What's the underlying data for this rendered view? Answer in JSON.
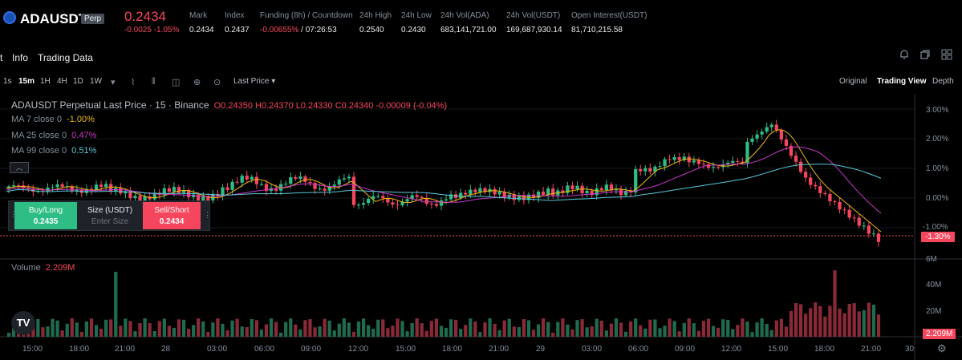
{
  "header": {
    "symbol": "ADAUSDT",
    "badge": "Perp",
    "last_price": "0.2434",
    "change": "-0.0025 -1.05%",
    "stats": [
      {
        "label": "Mark",
        "value": "0.2434"
      },
      {
        "label": "Index",
        "value": "0.2437"
      },
      {
        "label": "Funding (8h) / Countdown",
        "value_neg": "-0.00655%",
        "value": "/ 07:26:53"
      },
      {
        "label": "24h High",
        "value": "0.2540"
      },
      {
        "label": "24h Low",
        "value": "0.2430"
      },
      {
        "label": "24h Vol(ADA)",
        "value": "683,141,721.00"
      },
      {
        "label": "24h Vol(USDT)",
        "value": "169,687,930.14"
      },
      {
        "label": "Open Interest(USDT)",
        "value": "81,710,215.58"
      }
    ]
  },
  "tabs": [
    "t",
    "Info",
    "Trading Data"
  ],
  "toolbar": {
    "intervals": [
      "1s",
      "15m",
      "1H",
      "4H",
      "1D",
      "1W"
    ],
    "active_interval": "15m",
    "price_type": "Last Price",
    "views": [
      "Original",
      "Trading View",
      "Depth"
    ],
    "active_view": "Trading View"
  },
  "legend": {
    "title": "ADAUSDT Perpetual Last Price · 15 · Binance",
    "ohlc": "O0.24350 H0.24370 L0.24330 C0.24340 -0.00009 (-0.04%)",
    "ma7": {
      "label": "MA 7 close 0",
      "value": "-1.00%",
      "color": "#f0b90b"
    },
    "ma25": {
      "label": "MA 25 close 0",
      "value": "0.47%",
      "color": "#c837c8"
    },
    "ma99": {
      "label": "MA 99 close 0",
      "value": "0.51%",
      "color": "#5ac8d8"
    },
    "volume_label": "Volume",
    "volume_value": "2.209M"
  },
  "trade_box": {
    "buy_label": "Buy/Long",
    "buy_price": "0.2435",
    "size_label": "Size (USDT)",
    "size_placeholder": "Enter Size",
    "sell_label": "Sell/Short",
    "sell_price": "0.2434"
  },
  "price_axis": [
    "3.00%",
    "2.00%",
    "1.00%",
    "0.00%",
    "-1.00%"
  ],
  "current_tag": "-1.30%",
  "volume_axis": [
    "6M",
    "40M",
    "20M"
  ],
  "volume_tag": "2.209M",
  "time_axis": [
    "15:00",
    "18:00",
    "21:00",
    "28",
    "03:00",
    "06:00",
    "09:00",
    "12:00",
    "15:00",
    "18:00",
    "21:00",
    "29",
    "03:00",
    "06:00",
    "09:00",
    "12:00",
    "15:00",
    "18:00",
    "21:00",
    "30"
  ],
  "colors": {
    "up": "#2ebd85",
    "down": "#f6465d",
    "bg": "#000000",
    "grid": "#1e2329"
  },
  "icons": [
    "bell-icon",
    "copy-icon",
    "grid-icon",
    "tv-logo-icon",
    "settings-icon"
  ]
}
